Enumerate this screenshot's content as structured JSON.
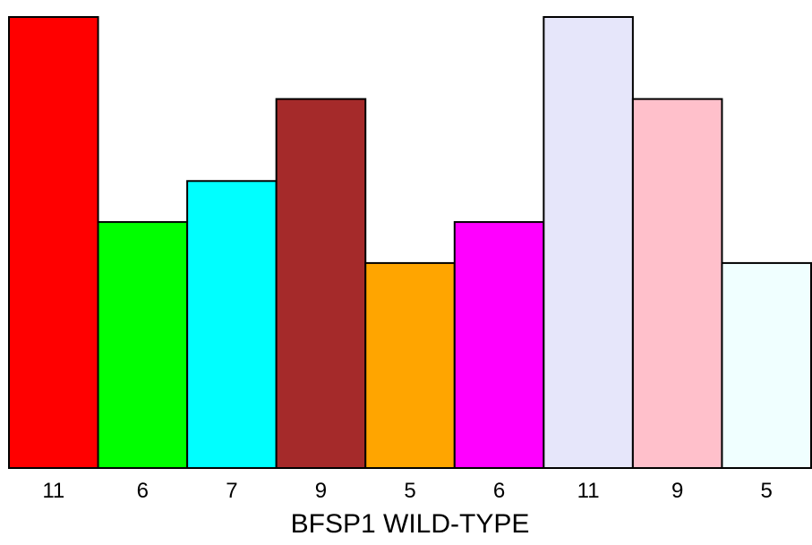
{
  "chart_data": {
    "type": "bar",
    "title": "",
    "xlabel": "BFSP1 WILD-TYPE",
    "ylabel": "",
    "categories": [
      "11",
      "6",
      "7",
      "9",
      "5",
      "6",
      "11",
      "9",
      "5"
    ],
    "values": [
      11,
      6,
      7,
      9,
      5,
      6,
      11,
      9,
      5
    ],
    "colors": [
      "#ff0000",
      "#00ff00",
      "#00ffff",
      "#a52a2a",
      "#ffa500",
      "#ff00ff",
      "#e6e6fa",
      "#ffc0cb",
      "#f0ffff"
    ],
    "ylim": [
      0,
      11
    ],
    "grid": false,
    "legend": "none"
  }
}
